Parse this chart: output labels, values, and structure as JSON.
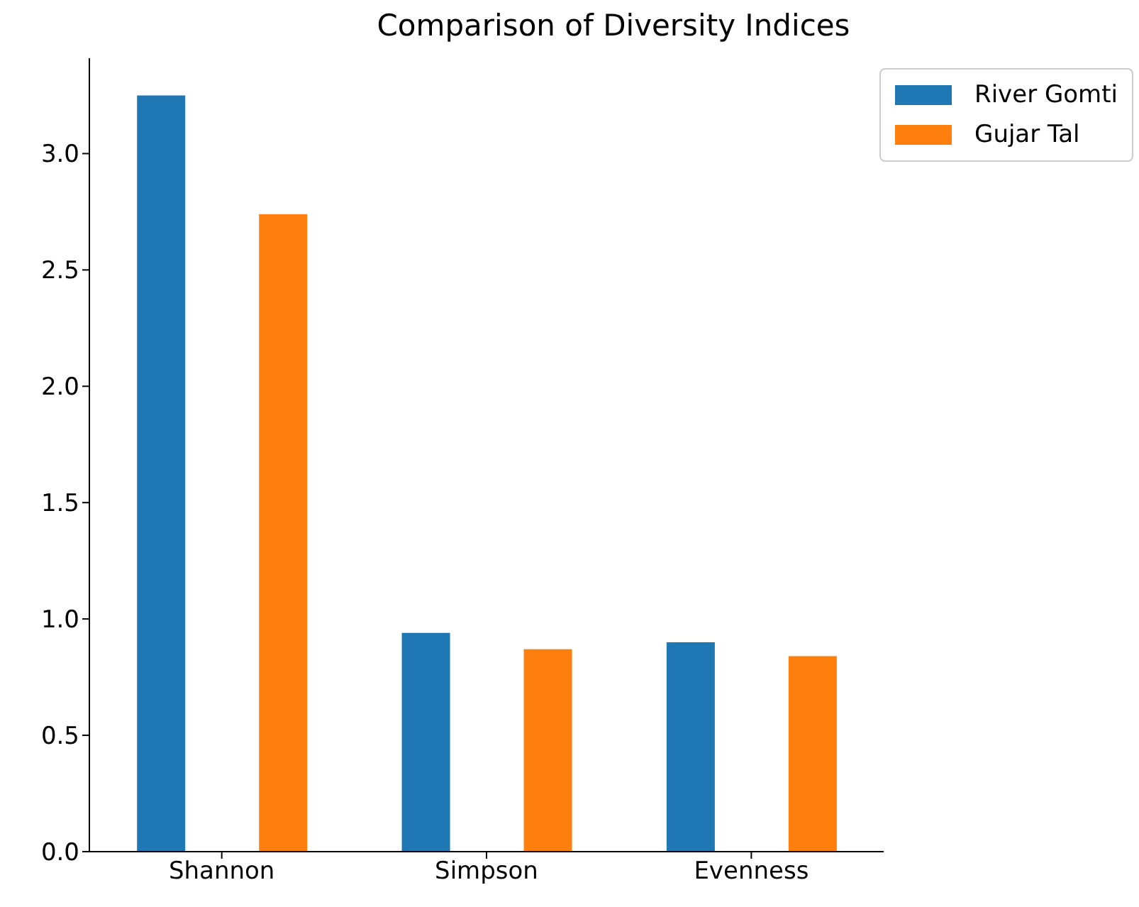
{
  "chart_data": {
    "type": "bar",
    "title": "Comparison of Diversity Indices",
    "categories": [
      "Shannon",
      "Simpson",
      "Evenness"
    ],
    "series": [
      {
        "name": "River Gomti",
        "color": "#1f77b4",
        "values": [
          3.25,
          0.94,
          0.9
        ]
      },
      {
        "name": "Gujar Tal",
        "color": "#ff7f0e",
        "values": [
          2.74,
          0.87,
          0.84
        ]
      }
    ],
    "ylim": [
      0,
      3.41
    ],
    "yticks": [
      {
        "value": 0,
        "label": "0.0"
      },
      0.5,
      {
        "value": 1,
        "label": "1.0"
      },
      1.5,
      {
        "value": 2,
        "label": "2.0"
      },
      2.5,
      {
        "value": 3,
        "label": "3.0"
      }
    ],
    "grid": false,
    "legend": "top right"
  }
}
